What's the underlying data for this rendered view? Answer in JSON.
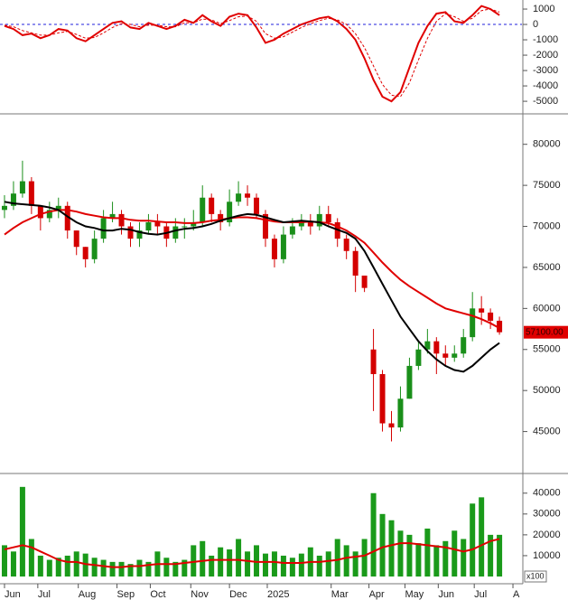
{
  "chart_data": [
    {
      "type": "line",
      "ylim": [
        -5760,
        1590
      ],
      "yticks": [
        -5000,
        -4000,
        -3000,
        -2000,
        -1000,
        0,
        1000
      ],
      "series": [
        {
          "color": "#e00000",
          "dash": false,
          "values": [
            -100,
            -300,
            -700,
            -600,
            -900,
            -700,
            -300,
            -400,
            -900,
            -1100,
            -700,
            -300,
            100,
            200,
            -200,
            -300,
            100,
            -100,
            -300,
            -100,
            300,
            100,
            600,
            200,
            -100,
            500,
            700,
            600,
            -200,
            -1200,
            -1000,
            -600,
            -300,
            0,
            200,
            400,
            500,
            200,
            -300,
            -1000,
            -2200,
            -3600,
            -4700,
            -5000,
            -4400,
            -2800,
            -1200,
            -100,
            700,
            800,
            200,
            100,
            600,
            1200,
            1000,
            600
          ]
        },
        {
          "color": "#e00000",
          "dash": true,
          "values": [
            -50,
            -150,
            -400,
            -550,
            -700,
            -700,
            -550,
            -450,
            -650,
            -900,
            -850,
            -550,
            -200,
            50,
            0,
            -150,
            -50,
            -50,
            -150,
            -150,
            100,
            100,
            350,
            300,
            50,
            250,
            500,
            550,
            200,
            -600,
            -900,
            -800,
            -500,
            -200,
            50,
            250,
            400,
            300,
            0,
            -600,
            -1500,
            -2700,
            -3900,
            -4600,
            -4700,
            -3800,
            -2300,
            -900,
            200,
            700,
            500,
            200,
            400,
            900,
            1000,
            800
          ]
        }
      ]
    },
    {
      "type": "candlestick",
      "ylim": [
        40000,
        83600
      ],
      "yticks": [
        45000,
        50000,
        55000,
        60000,
        65000,
        70000,
        75000,
        80000
      ],
      "up_color": "#1a8f1a",
      "down_color": "#d40000",
      "open": [
        72000,
        72500,
        74000,
        75500,
        72500,
        71000,
        72000,
        72500,
        69500,
        67500,
        66000,
        68500,
        71000,
        71500,
        70000,
        68500,
        69500,
        70500,
        70000,
        68500,
        70000,
        70000,
        70500,
        73500,
        71500,
        70500,
        73000,
        74000,
        73500,
        71500,
        68500,
        66000,
        69000,
        70000,
        70500,
        70000,
        71500,
        70500,
        68500,
        67000,
        64000,
        55000,
        52000,
        46000,
        45500,
        49000,
        53000,
        55000,
        56000,
        54500,
        54000,
        54500,
        56500,
        60000,
        59500,
        58500
      ],
      "high": [
        73800,
        75500,
        78000,
        76000,
        72500,
        73000,
        73500,
        73000,
        69500,
        67500,
        69500,
        72000,
        73000,
        72000,
        70500,
        70500,
        71500,
        71500,
        70500,
        71000,
        71000,
        72000,
        75000,
        74000,
        72000,
        74500,
        75500,
        75000,
        74000,
        72000,
        69000,
        70000,
        71000,
        71500,
        71500,
        72500,
        72500,
        71000,
        69000,
        67500,
        64000,
        57500,
        52500,
        47500,
        50500,
        54000,
        56000,
        57500,
        56500,
        55500,
        55500,
        57500,
        62000,
        61500,
        60000,
        59000
      ],
      "low": [
        71000,
        72000,
        73500,
        71500,
        69500,
        70500,
        71000,
        68500,
        66500,
        65000,
        65500,
        68000,
        70500,
        69000,
        67500,
        67500,
        69000,
        69000,
        67500,
        68000,
        68500,
        69500,
        70000,
        70500,
        69500,
        70000,
        72500,
        72500,
        71000,
        67500,
        65000,
        65500,
        68500,
        69500,
        69000,
        69500,
        70000,
        67500,
        66000,
        62000,
        62000,
        47500,
        45000,
        43800,
        45000,
        49000,
        52500,
        54500,
        52000,
        53000,
        53500,
        54000,
        56000,
        58000,
        57500,
        56800
      ],
      "close": [
        72500,
        74000,
        75500,
        72500,
        71000,
        72000,
        72500,
        69500,
        67500,
        66000,
        68500,
        71000,
        71500,
        70000,
        68500,
        69500,
        70500,
        70000,
        68500,
        70000,
        70000,
        70500,
        73500,
        71500,
        70500,
        73000,
        74000,
        73500,
        71500,
        68500,
        66000,
        69000,
        70000,
        70500,
        70000,
        71500,
        70500,
        68500,
        67000,
        64000,
        62500,
        52000,
        46000,
        45500,
        49000,
        53000,
        55000,
        56000,
        54500,
        54000,
        54500,
        56500,
        60000,
        59500,
        58500,
        57100
      ],
      "lines": [
        {
          "color": "#e00000",
          "values": [
            69000,
            69800,
            70500,
            71000,
            71500,
            71800,
            72000,
            72000,
            71800,
            71500,
            71300,
            71100,
            71000,
            71000,
            70800,
            70700,
            70700,
            70600,
            70500,
            70500,
            70400,
            70400,
            70500,
            70700,
            70800,
            71000,
            71100,
            71100,
            71000,
            70800,
            70600,
            70500,
            70500,
            70500,
            70600,
            70500,
            70400,
            70000,
            69500,
            68800,
            68000,
            66800,
            65600,
            64500,
            63500,
            62700,
            62000,
            61300,
            60600,
            60000,
            59700,
            59400,
            59100,
            58700,
            58200,
            57600
          ]
        },
        {
          "color": "#000000",
          "values": [
            73000,
            72800,
            72700,
            72600,
            72500,
            72300,
            72000,
            71200,
            70500,
            70000,
            69800,
            69500,
            69500,
            69700,
            69600,
            69300,
            69100,
            69000,
            69200,
            69500,
            69700,
            69800,
            70000,
            70300,
            70700,
            71000,
            71300,
            71500,
            71400,
            71100,
            70800,
            70500,
            70600,
            70700,
            70600,
            70500,
            70000,
            69600,
            69200,
            68500,
            67000,
            65000,
            63000,
            61000,
            59000,
            57500,
            56000,
            54800,
            53800,
            53000,
            52500,
            52300,
            53000,
            54000,
            55000,
            55800
          ]
        }
      ],
      "price_label": {
        "value": 57100,
        "label": "57100.00",
        "color": "#e00000"
      }
    },
    {
      "type": "bar",
      "ylim": [
        0,
        49000
      ],
      "yticks": [
        10000,
        20000,
        30000,
        40000
      ],
      "color": "#1a9a1a",
      "unit_label": "x100",
      "values": [
        15000,
        12000,
        43000,
        18000,
        10000,
        8000,
        9000,
        10000,
        12000,
        11000,
        9000,
        8000,
        7000,
        7000,
        6000,
        8000,
        7000,
        12000,
        9000,
        7000,
        8000,
        15000,
        17000,
        10000,
        14000,
        13000,
        18000,
        12000,
        15000,
        11000,
        12000,
        10000,
        9000,
        11000,
        14000,
        10000,
        12000,
        18000,
        15000,
        12000,
        18000,
        40000,
        30000,
        27000,
        22000,
        20000,
        16000,
        23000,
        15000,
        17000,
        22000,
        18000,
        35000,
        38000,
        20000,
        20000
      ],
      "lines": [
        {
          "color": "#e00000",
          "values": [
            13000,
            14000,
            15000,
            14000,
            12000,
            10000,
            8000,
            7000,
            7000,
            6000,
            5500,
            5000,
            4500,
            4500,
            5000,
            5000,
            5500,
            6000,
            6000,
            6000,
            6500,
            7000,
            7500,
            8000,
            8000,
            8000,
            8000,
            7500,
            7000,
            7000,
            7000,
            6500,
            6500,
            6500,
            7000,
            7000,
            7500,
            8000,
            9000,
            9500,
            10000,
            12000,
            14000,
            15000,
            16000,
            16000,
            15500,
            15000,
            14500,
            14000,
            13000,
            12000,
            13000,
            15000,
            17000,
            18000
          ]
        }
      ],
      "xlim": [
        0,
        58
      ],
      "xticks": [
        {
          "value": 0.5,
          "label": "Jun"
        },
        {
          "value": 4.2,
          "label": "Jul"
        },
        {
          "value": 8.7,
          "label": "Aug"
        },
        {
          "value": 13,
          "label": "Sep"
        },
        {
          "value": 16.7,
          "label": "Oct"
        },
        {
          "value": 21.2,
          "label": "Nov"
        },
        {
          "value": 25.5,
          "label": "Dec"
        },
        {
          "value": 29.7,
          "label": "2025"
        },
        {
          "value": 36.8,
          "label": "Mar"
        },
        {
          "value": 41,
          "label": "Apr"
        },
        {
          "value": 45,
          "label": "May"
        },
        {
          "value": 48.7,
          "label": "Jun"
        },
        {
          "value": 52.7,
          "label": "Jul"
        },
        {
          "value": 57,
          "label": "A"
        }
      ]
    }
  ]
}
